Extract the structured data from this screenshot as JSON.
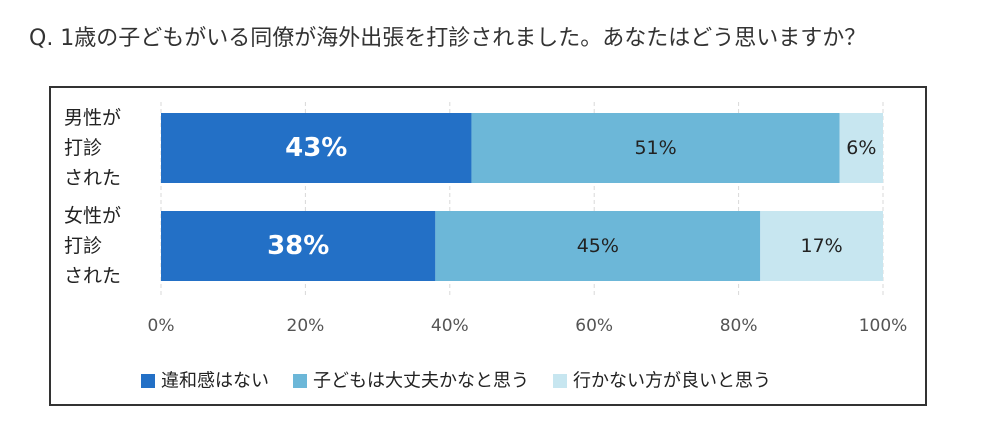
{
  "question": "Q. 1歳の子どもがいる同僚が海外出張を打診されました。あなたはどう思いますか？",
  "chart_data": {
    "type": "bar",
    "orientation": "horizontal",
    "stacked": true,
    "categories": [
      [
        "男性が",
        "打診",
        "された"
      ],
      [
        "女性が",
        "打診",
        "された"
      ]
    ],
    "series": [
      {
        "name": "違和感はない",
        "values": [
          43,
          38
        ],
        "color": "#2370c6",
        "label_color": "#ffffff",
        "label_size": "big"
      },
      {
        "name": "子どもは大丈夫かなと思う",
        "values": [
          51,
          45
        ],
        "color": "#6cb7d8",
        "label_color": "#222222",
        "label_size": "small"
      },
      {
        "name": "行かない方が良いと思う",
        "values": [
          6,
          17
        ],
        "color": "#c7e6f0",
        "label_color": "#222222",
        "label_size": "small"
      }
    ],
    "data_labels": [
      [
        "43%",
        "51%",
        "6%"
      ],
      [
        "38%",
        "45%",
        "17%"
      ]
    ],
    "xlim": [
      0,
      100
    ],
    "xticks": [
      "0%",
      "20%",
      "40%",
      "60%",
      "80%",
      "100%"
    ],
    "grid": true,
    "legend_position": "bottom"
  }
}
